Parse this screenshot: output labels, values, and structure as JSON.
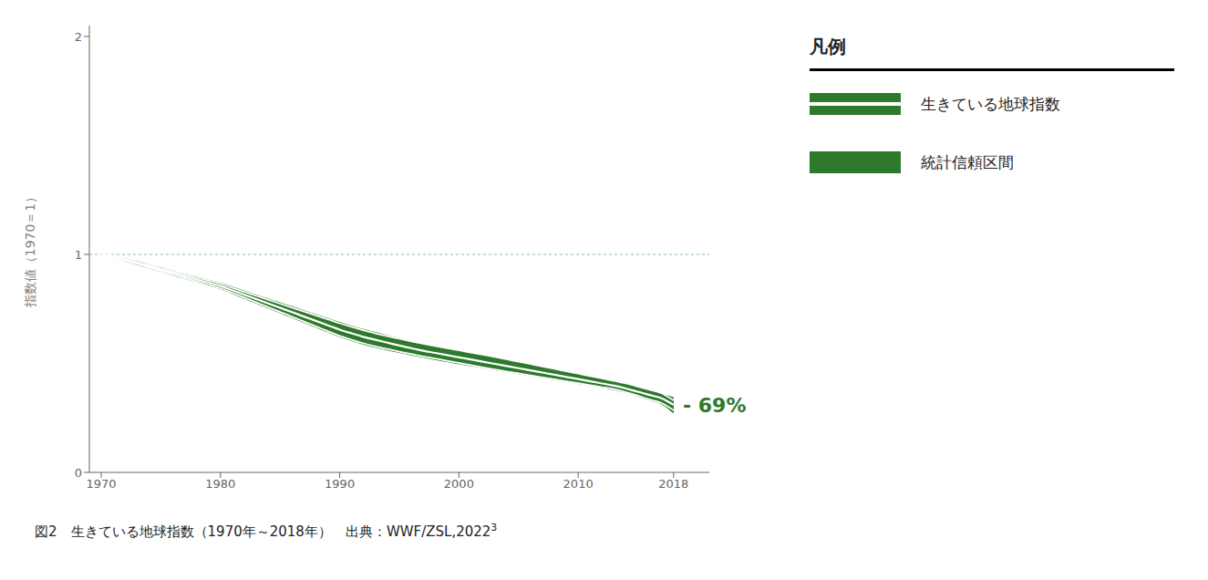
{
  "chart_data": {
    "type": "line",
    "x_label": null,
    "y_label": "指数値（1970＝1）",
    "legend_title": "凡例",
    "legend": "right",
    "caption": "図2　生きている地球指数（1970年～2018年）　出典：WWF/ZSL,2022",
    "caption_superscript": "3",
    "x": [
      1970,
      1971,
      1972,
      1973,
      1974,
      1975,
      1976,
      1977,
      1978,
      1979,
      1980,
      1981,
      1982,
      1983,
      1984,
      1985,
      1986,
      1987,
      1988,
      1989,
      1990,
      1991,
      1992,
      1993,
      1994,
      1995,
      1996,
      1997,
      1998,
      1999,
      2000,
      2001,
      2002,
      2003,
      2004,
      2005,
      2006,
      2007,
      2008,
      2009,
      2010,
      2011,
      2012,
      2013,
      2014,
      2015,
      2016,
      2017,
      2018
    ],
    "series": [
      {
        "name": "統計信頼区間",
        "type": "band",
        "color": "#2d7a2d",
        "lower": [
          1.0,
          0.985,
          0.968,
          0.952,
          0.936,
          0.92,
          0.904,
          0.888,
          0.872,
          0.856,
          0.84,
          0.818,
          0.796,
          0.774,
          0.752,
          0.73,
          0.708,
          0.686,
          0.664,
          0.642,
          0.62,
          0.602,
          0.586,
          0.572,
          0.56,
          0.548,
          0.537,
          0.526,
          0.516,
          0.506,
          0.496,
          0.487,
          0.478,
          0.469,
          0.46,
          0.451,
          0.442,
          0.433,
          0.424,
          0.415,
          0.406,
          0.397,
          0.388,
          0.378,
          0.365,
          0.348,
          0.33,
          0.312,
          0.27
        ],
        "upper": [
          1.0,
          0.995,
          0.982,
          0.968,
          0.954,
          0.94,
          0.926,
          0.912,
          0.898,
          0.884,
          0.87,
          0.852,
          0.834,
          0.816,
          0.798,
          0.78,
          0.762,
          0.744,
          0.726,
          0.708,
          0.69,
          0.674,
          0.658,
          0.644,
          0.63,
          0.616,
          0.603,
          0.591,
          0.58,
          0.569,
          0.558,
          0.547,
          0.536,
          0.525,
          0.514,
          0.503,
          0.492,
          0.481,
          0.47,
          0.459,
          0.448,
          0.437,
          0.426,
          0.415,
          0.403,
          0.39,
          0.376,
          0.362,
          0.345
        ]
      },
      {
        "name": "生きている地球指数",
        "type": "band",
        "color": "#2d7a2d",
        "line_color": "#ffffff",
        "lower": [
          1.0,
          0.987,
          0.972,
          0.956,
          0.94,
          0.924,
          0.908,
          0.892,
          0.876,
          0.86,
          0.844,
          0.823,
          0.802,
          0.78,
          0.758,
          0.736,
          0.714,
          0.692,
          0.67,
          0.648,
          0.626,
          0.608,
          0.592,
          0.578,
          0.566,
          0.554,
          0.543,
          0.532,
          0.522,
          0.512,
          0.502,
          0.492,
          0.482,
          0.472,
          0.463,
          0.454,
          0.445,
          0.436,
          0.427,
          0.418,
          0.409,
          0.4,
          0.391,
          0.382,
          0.368,
          0.352,
          0.334,
          0.318,
          0.285
        ],
        "upper": [
          1.0,
          0.993,
          0.978,
          0.964,
          0.95,
          0.936,
          0.922,
          0.908,
          0.894,
          0.88,
          0.866,
          0.847,
          0.828,
          0.81,
          0.792,
          0.774,
          0.756,
          0.738,
          0.72,
          0.702,
          0.684,
          0.668,
          0.652,
          0.638,
          0.625,
          0.613,
          0.601,
          0.59,
          0.58,
          0.57,
          0.56,
          0.55,
          0.54,
          0.53,
          0.519,
          0.508,
          0.497,
          0.486,
          0.475,
          0.464,
          0.453,
          0.442,
          0.431,
          0.42,
          0.408,
          0.394,
          0.379,
          0.363,
          0.33
        ]
      },
      {
        "type": "line",
        "color": "#ffffff",
        "values": [
          1.0,
          0.99,
          0.975,
          0.96,
          0.945,
          0.93,
          0.915,
          0.9,
          0.885,
          0.87,
          0.855,
          0.835,
          0.815,
          0.795,
          0.775,
          0.755,
          0.735,
          0.715,
          0.695,
          0.675,
          0.655,
          0.638,
          0.622,
          0.608,
          0.595,
          0.582,
          0.57,
          0.558,
          0.548,
          0.538,
          0.528,
          0.518,
          0.508,
          0.498,
          0.488,
          0.478,
          0.468,
          0.458,
          0.448,
          0.438,
          0.428,
          0.418,
          0.408,
          0.398,
          0.385,
          0.37,
          0.355,
          0.34,
          0.31
        ]
      }
    ],
    "reference_line": {
      "y": 1,
      "color": "#7fbfbf",
      "line_style": "dotted"
    },
    "annotations": [
      {
        "text": "- 69%",
        "x": 2018.4,
        "y": 0.308,
        "color": "#2d7a2d"
      }
    ],
    "xlim": [
      1969,
      2021
    ],
    "xticks": [
      1970,
      1980,
      1990,
      2000,
      2010,
      2018
    ],
    "ylim": [
      0,
      2.05
    ],
    "yticks": [
      0,
      1,
      2
    ],
    "grid": false
  }
}
